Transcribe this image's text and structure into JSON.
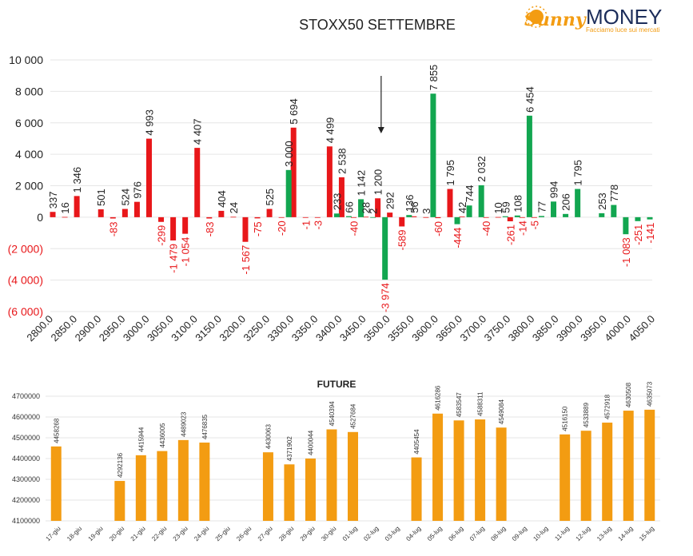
{
  "logo": {
    "brand_left": "Sunny",
    "brand_right": "MONEY",
    "tagline": "Facciamo luce sui mercati",
    "colors": {
      "sunny": "#f39c12",
      "money": "#1c2d5a",
      "tagline": "#f39c12"
    }
  },
  "chart_data": [
    {
      "type": "bar",
      "title": "STOXX50 SETTEMBRE",
      "xlabel": "",
      "ylabel": "",
      "ylim": [
        -6000,
        10000
      ],
      "y_ticks": [
        10000,
        8000,
        6000,
        4000,
        2000,
        0,
        -2000,
        -4000,
        -6000
      ],
      "y_tick_labels": [
        "10 000",
        "8 000",
        "6 000",
        "4 000",
        "2 000",
        "0",
        "(2 000)",
        "(4 000)",
        "(6 000)"
      ],
      "x_tick_labels": [
        "2800.0",
        "2850.0",
        "2900.0",
        "2950.0",
        "3000.0",
        "3050.0",
        "3100.0",
        "3150.0",
        "3200.0",
        "3250.0",
        "3300.0",
        "3350.0",
        "3400.0",
        "3450.0",
        "3500.0",
        "3550.0",
        "3600.0",
        "3650.0",
        "3700.0",
        "3750.0",
        "3800.0",
        "3850.0",
        "3900.0",
        "3950.0",
        "4000.0",
        "4050.0"
      ],
      "grid": true,
      "colors": {
        "red_series": "#e8171a",
        "green_series": "#12a650"
      },
      "series": [
        {
          "color": "red",
          "x": [
            2800,
            2825,
            2850,
            2900,
            2925,
            2950,
            2975,
            3000,
            3025,
            3050,
            3075,
            3100,
            3125,
            3150,
            3175,
            3200,
            3225,
            3250,
            3275,
            3300,
            3325,
            3350,
            3375,
            3400,
            3425,
            3450,
            3475,
            3500,
            3525,
            3550,
            3575,
            3600,
            3625,
            3650,
            3700,
            3725,
            3750,
            3775,
            3800
          ],
          "values": [
            337,
            16,
            1346,
            501,
            -83,
            524,
            976,
            4993,
            -299,
            -1479,
            -1054,
            4407,
            -83,
            404,
            24,
            -1567,
            -75,
            525,
            -20,
            5694,
            -1,
            -3,
            4499,
            2538,
            -40,
            28,
            1200,
            292,
            -589,
            56,
            3,
            -60,
            1795,
            42,
            -40,
            10,
            -261,
            -14,
            -5
          ],
          "labels": [
            "337",
            "16",
            "1 346",
            "501",
            "-83",
            "524",
            "976",
            "4 993",
            "-299",
            "-1 479",
            "-1 054",
            "4 407",
            "-83",
            "404",
            "24",
            "-1 567",
            "-75",
            "525",
            "-20",
            "5 694",
            "-1",
            "-3",
            "4 499",
            "2 538",
            "-40",
            "28",
            "1 200",
            "292",
            "-589",
            "56",
            "3",
            "-60",
            "1 795",
            "42",
            "-40",
            "10",
            "-261",
            "-14",
            "-5"
          ]
        },
        {
          "color": "green",
          "x": [
            3300,
            3400,
            3425,
            3450,
            3475,
            3500,
            3550,
            3600,
            3650,
            3675,
            3700,
            3750,
            3775,
            3800,
            3825,
            3850,
            3875,
            3900,
            3950,
            3975,
            4000,
            4025,
            4050
          ],
          "values": [
            3000,
            233,
            66,
            1142,
            2,
            -3974,
            136,
            7855,
            -444,
            744,
            2032,
            59,
            108,
            6454,
            77,
            994,
            206,
            1795,
            253,
            778,
            -1083,
            -251,
            -141
          ],
          "labels": [
            "3 000",
            "233",
            "66",
            "1 142",
            "2",
            "-3 974",
            "136",
            "7 855",
            "-444",
            "744",
            "2 032",
            "59",
            "108",
            "6 454",
            "77",
            "994",
            "206",
            "1 795",
            "253",
            "778",
            "-1 083",
            "-251",
            "-141"
          ]
        }
      ],
      "annotations": [
        {
          "type": "arrow-down",
          "x": 3487
        }
      ]
    },
    {
      "type": "bar",
      "title": "FUTURE",
      "xlabel": "",
      "ylabel": "",
      "ylim": [
        4100000,
        4700000
      ],
      "y_ticks": [
        4700000,
        4600000,
        4500000,
        4400000,
        4300000,
        4200000,
        4100000
      ],
      "y_tick_labels": [
        "4700000",
        "4600000",
        "4500000",
        "4400000",
        "4300000",
        "4200000",
        "4100000"
      ],
      "grid": true,
      "colors": {
        "bars": "#f39c12"
      },
      "categories": [
        "17-giu",
        "18-giu",
        "19-giu",
        "20-giu",
        "21-giu",
        "22-giu",
        "23-giu",
        "24-giu",
        "25-giu",
        "26-giu",
        "27-giu",
        "28-giu",
        "29-giu",
        "30-giu",
        "01-lug",
        "02-lug",
        "03-lug",
        "04-lug",
        "05-lug",
        "06-lug",
        "07-lug",
        "08-lug",
        "09-lug",
        "10-lug",
        "11-lug",
        "12-lug",
        "13-lug",
        "14-lug",
        "15-lug"
      ],
      "values": [
        4458268,
        null,
        null,
        4292136,
        4415944,
        4436005,
        4489023,
        4476835,
        null,
        null,
        4430063,
        4371902,
        4400044,
        4540394,
        4527684,
        null,
        null,
        4405454,
        4616286,
        4583547,
        4588311,
        4549084,
        null,
        null,
        4516150,
        4533889,
        4572918,
        4630508,
        4635073
      ],
      "labels": [
        "4458268",
        "",
        "",
        "4292136",
        "4415944",
        "4436005",
        "4489023",
        "4476835",
        "",
        "",
        "4430063",
        "4371902",
        "4400044",
        "4540394",
        "4527684",
        "",
        "",
        "4405454",
        "4616286",
        "4583547",
        "4588311",
        "4549084",
        "",
        "",
        "4516150",
        "4533889",
        "4572918",
        "4630508",
        "4635073"
      ]
    }
  ]
}
